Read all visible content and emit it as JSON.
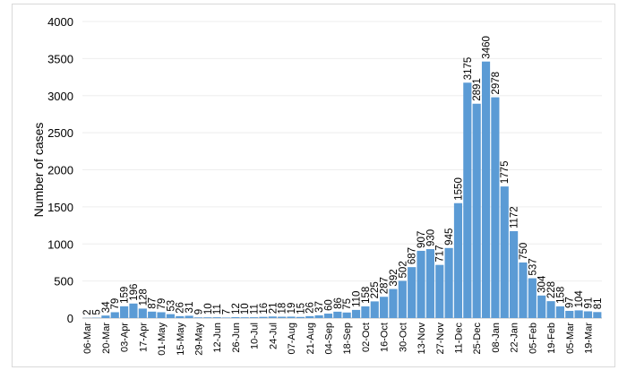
{
  "chart_data": {
    "type": "bar",
    "title": "",
    "xlabel": "",
    "ylabel": "Number of cases",
    "ylim": [
      0,
      4000
    ],
    "yticks": [
      0,
      500,
      1000,
      1500,
      2000,
      2500,
      3000,
      3500,
      4000
    ],
    "grid": true,
    "bar_color": "#5b9bd5",
    "xtick_labels": [
      "06-Mar",
      "20-Mar",
      "03-Apr",
      "17-Apr",
      "01-May",
      "15-May",
      "29-May",
      "12-Jun",
      "26-Jun",
      "10-Jul",
      "24-Jul",
      "07-Aug",
      "21-Aug",
      "04-Sep",
      "18-Sep",
      "02-Oct",
      "16-Oct",
      "30-Oct",
      "13-Nov",
      "27-Nov",
      "11-Dec",
      "25-Dec",
      "08-Jan",
      "22-Jan",
      "05-Feb",
      "19-Feb",
      "05-Mar",
      "19-Mar"
    ],
    "values": [
      2,
      5,
      34,
      79,
      159,
      196,
      128,
      87,
      79,
      53,
      26,
      31,
      9,
      10,
      11,
      7,
      12,
      10,
      11,
      16,
      21,
      18,
      19,
      15,
      26,
      37,
      60,
      86,
      75,
      110,
      158,
      225,
      287,
      392,
      502,
      687,
      907,
      930,
      717,
      945,
      1550,
      3175,
      2891,
      3460,
      2978,
      1775,
      1172,
      750,
      537,
      304,
      228,
      158,
      97,
      104,
      91,
      81
    ]
  }
}
